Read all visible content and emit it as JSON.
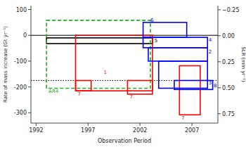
{
  "chart_data": {
    "type": "rectangle",
    "xlabel": "Observation Period",
    "ylabel": "Rate of mass increase (Gt yr⁻¹)",
    "y2label": "SLR (mm yr⁻¹)",
    "xlim": [
      1991.5,
      2009.5
    ],
    "ylim": [
      -340,
      115
    ],
    "y2lim": [
      0.84,
      -0.29
    ],
    "xticks": [
      1992,
      1997,
      2002,
      2007
    ],
    "yticks": [
      100,
      0,
      -100,
      -200,
      -300
    ],
    "y2ticks": [
      {
        "value": -0.25,
        "label": "−0.25"
      },
      {
        "value": 0.0,
        "label": "0.00"
      },
      {
        "value": 0.25,
        "label": "0.25"
      },
      {
        "value": 0.5,
        "label": "0.50"
      },
      {
        "value": 0.75,
        "label": "0.75"
      }
    ],
    "grid": false,
    "hlines": [
      {
        "value": 0,
        "color": "black",
        "line_style": "solid"
      },
      {
        "value": -175,
        "color": "black",
        "line_style": "dotted"
      }
    ],
    "series": [
      {
        "label": "5",
        "color": "black",
        "line_style": "solid",
        "x1": 1993.0,
        "x2": 2003.2,
        "y1": -10,
        "y2": -32,
        "label_x": 2003.4,
        "label_y": -20
      },
      {
        "label": "AR4",
        "color": "#22aa22",
        "line_style": "dashed",
        "x1": 1993.0,
        "x2": 2003.0,
        "y1": 58,
        "y2": -205,
        "label_x": 1993.2,
        "label_y": -218
      },
      {
        "label": "1",
        "color": "red",
        "line_style": "solid",
        "x1": 1995.8,
        "x2": 2003.2,
        "y1": 0,
        "y2": -215,
        "label_x": 1998.5,
        "label_y": -145
      },
      {
        "label": "7",
        "color": "red",
        "line_style": "solid",
        "x1": 1995.8,
        "x2": 1997.3,
        "y1": -175,
        "y2": -215,
        "label_x": 1996.0,
        "label_y": -228
      },
      {
        "label": "7",
        "color": "red",
        "line_style": "solid",
        "x1": 2000.8,
        "x2": 2003.2,
        "y1": -175,
        "y2": -228,
        "label_x": 2001.0,
        "label_y": -240
      },
      {
        "label": "7",
        "color": "red",
        "line_style": "solid",
        "x1": 2005.8,
        "x2": 2007.8,
        "y1": -118,
        "y2": -308,
        "label_x": 2006.0,
        "label_y": -320
      },
      {
        "label": "6",
        "color": "blue",
        "line_style": "solid",
        "x1": 2002.3,
        "x2": 2006.5,
        "y1": 50,
        "y2": -8,
        "label_x": 2003.0,
        "label_y": 58
      },
      {
        "label": "4",
        "color": "blue",
        "line_style": "solid",
        "x1": 2002.3,
        "x2": 2008.5,
        "y1": -8,
        "y2": -48,
        "label_x": 2008.6,
        "label_y": -18
      },
      {
        "label": "2",
        "color": "blue",
        "line_style": "solid",
        "x1": 2002.8,
        "x2": 2008.5,
        "y1": -48,
        "y2": -100,
        "label_x": 2008.6,
        "label_y": -65
      },
      {
        "label": "3",
        "color": "blue",
        "line_style": "solid",
        "x1": 2003.8,
        "x2": 2008.5,
        "y1": -100,
        "y2": -205,
        "label_x": 2008.6,
        "label_y": -185
      },
      {
        "label": "8",
        "color": "blue",
        "line_style": "solid",
        "x1": 2005.3,
        "x2": 2009.0,
        "y1": -175,
        "y2": -210,
        "label_x": 2009.1,
        "label_y": -195
      }
    ]
  }
}
